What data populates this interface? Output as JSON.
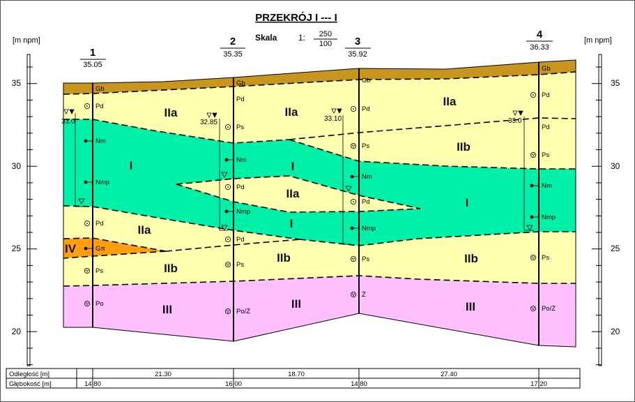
{
  "title": "PRZEKRÓJ   I --- I",
  "scale": {
    "label": "Skala",
    "prefix": "1:",
    "horizontal": "250",
    "vertical": "100"
  },
  "axis": {
    "unit_label": "[m npm]",
    "ticks": [
      "35",
      "30",
      "25",
      "20"
    ]
  },
  "boreholes": [
    {
      "number": "1",
      "elevation": "35.05",
      "water_level": "33.0"
    },
    {
      "number": "2",
      "elevation": "35.35",
      "water_level": "32.85"
    },
    {
      "number": "3",
      "elevation": "35.92",
      "water_level": "33.10"
    },
    {
      "number": "4",
      "elevation": "36.33",
      "water_level": "33.0"
    }
  ],
  "soil_codes": {
    "b1": [
      "Gb",
      "Pd",
      "Nm",
      "Nmp",
      "Pd",
      "Gπ",
      "Ps",
      "Po"
    ],
    "b2": [
      "Gb",
      "Pd",
      "Ps",
      "Nm",
      "Pd",
      "Nmp",
      "Pd",
      "Ps",
      "Po/Ż"
    ],
    "b3": [
      "Gb",
      "Pd",
      "Ps",
      "Nm",
      "Pd",
      "Nmp",
      "Ps",
      "Ż"
    ],
    "b4": [
      "Gb",
      "Pd",
      "Pd",
      "Ps",
      "Nm",
      "Nmp",
      "Ps",
      "Po/Ż"
    ]
  },
  "layers": {
    "I": "I",
    "IIa": "IIa",
    "IIb": "IIb",
    "III": "III",
    "IV": "IV"
  },
  "colors": {
    "topsoil": "#c8961e",
    "sand_IIa": "#ffffb0",
    "sand_IIb": "#ffffb0",
    "layer_I": "#00f0a8",
    "layer_III": "#ffc0ff",
    "layer_IV": "#ff9f10"
  },
  "table": {
    "row1_label": "Odległość   [m]",
    "row2_label": "Głębokość   [m]",
    "distances": [
      "21.30",
      "18.70",
      "27.40"
    ],
    "depths": [
      "14.80",
      "16.00",
      "14.80",
      "17.20"
    ]
  }
}
